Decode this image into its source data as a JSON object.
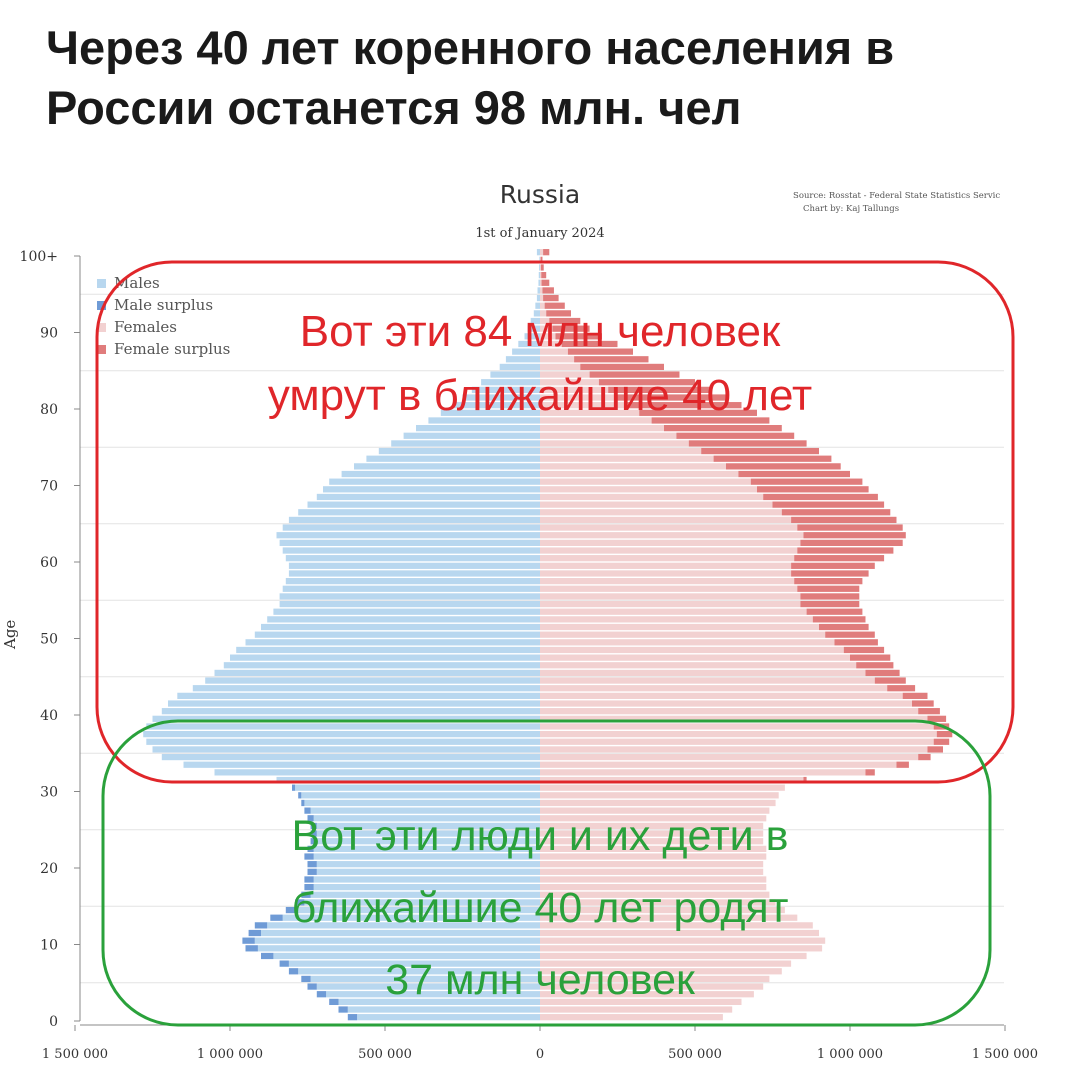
{
  "headline": "Через 40 лет коренного населения в России останется 98 млн. чел",
  "chart_data": {
    "type": "population-pyramid",
    "title": "Russia",
    "subtitle": "1st of January 2024",
    "source_line1": "Source: Rosstat - Federal State Statistics Servic",
    "source_line2": "Chart by: Kaj Tallungs",
    "ylabel": "Age",
    "xlabel": "",
    "ylim": [
      0,
      100
    ],
    "xlim": [
      -1500000,
      1500000
    ],
    "y_ticks": [
      "0",
      "10",
      "20",
      "30",
      "40",
      "50",
      "60",
      "70",
      "80",
      "90",
      "100+"
    ],
    "x_ticks": [
      "1 500 000",
      "1 000 000",
      "500 000",
      "0",
      "500 000",
      "1 000 000",
      "1 500 000"
    ],
    "legend_position": "top-left",
    "legend": [
      {
        "label": "Males",
        "color": "#b8d7ef"
      },
      {
        "label": "Male surplus",
        "color": "#6f9bd6"
      },
      {
        "label": "Females",
        "color": "#f2d1d1"
      },
      {
        "label": "Female surplus",
        "color": "#e07c7c"
      }
    ],
    "series": [
      {
        "name": "Males",
        "values": [
          620000,
          650000,
          680000,
          720000,
          750000,
          770000,
          810000,
          840000,
          900000,
          950000,
          960000,
          940000,
          920000,
          870000,
          820000,
          790000,
          770000,
          760000,
          760000,
          750000,
          750000,
          760000,
          750000,
          740000,
          740000,
          740000,
          750000,
          760000,
          770000,
          780000,
          800000,
          850000,
          1050000,
          1150000,
          1220000,
          1250000,
          1270000,
          1280000,
          1270000,
          1250000,
          1220000,
          1200000,
          1170000,
          1120000,
          1080000,
          1050000,
          1020000,
          1000000,
          980000,
          950000,
          920000,
          900000,
          880000,
          860000,
          840000,
          840000,
          830000,
          820000,
          810000,
          810000,
          820000,
          830000,
          840000,
          850000,
          830000,
          810000,
          780000,
          750000,
          720000,
          700000,
          680000,
          640000,
          600000,
          560000,
          520000,
          480000,
          440000,
          400000,
          360000,
          320000,
          280000,
          250000,
          220000,
          190000,
          160000,
          130000,
          110000,
          90000,
          70000,
          50000,
          40000,
          30000,
          20000,
          15000,
          10000,
          8000,
          5000,
          4000,
          3000,
          2000,
          10000
        ]
      },
      {
        "name": "Females",
        "values": [
          590000,
          620000,
          650000,
          690000,
          720000,
          740000,
          780000,
          810000,
          860000,
          910000,
          920000,
          900000,
          880000,
          830000,
          790000,
          760000,
          740000,
          730000,
          730000,
          720000,
          720000,
          730000,
          730000,
          720000,
          720000,
          720000,
          730000,
          740000,
          760000,
          770000,
          790000,
          860000,
          1080000,
          1190000,
          1260000,
          1300000,
          1320000,
          1330000,
          1320000,
          1310000,
          1290000,
          1270000,
          1250000,
          1210000,
          1180000,
          1160000,
          1140000,
          1130000,
          1110000,
          1090000,
          1080000,
          1060000,
          1050000,
          1040000,
          1030000,
          1030000,
          1030000,
          1040000,
          1060000,
          1080000,
          1110000,
          1140000,
          1170000,
          1180000,
          1170000,
          1150000,
          1130000,
          1110000,
          1090000,
          1060000,
          1040000,
          1000000,
          970000,
          940000,
          900000,
          860000,
          820000,
          780000,
          740000,
          700000,
          650000,
          600000,
          550000,
          500000,
          450000,
          400000,
          350000,
          300000,
          250000,
          200000,
          160000,
          130000,
          100000,
          80000,
          60000,
          45000,
          30000,
          20000,
          12000,
          8000,
          30000
        ]
      }
    ]
  },
  "annotations": {
    "red_line1": "Вот эти 84 млн человек",
    "red_line2": "умрут в ближайшие 40 лет",
    "green_line1": "Вот эти люди и их дети в",
    "green_line2": "ближайшие 40 лет родят",
    "green_line3": "37 млн человек",
    "red_color": "#e0262a",
    "green_color": "#2aa13b"
  }
}
